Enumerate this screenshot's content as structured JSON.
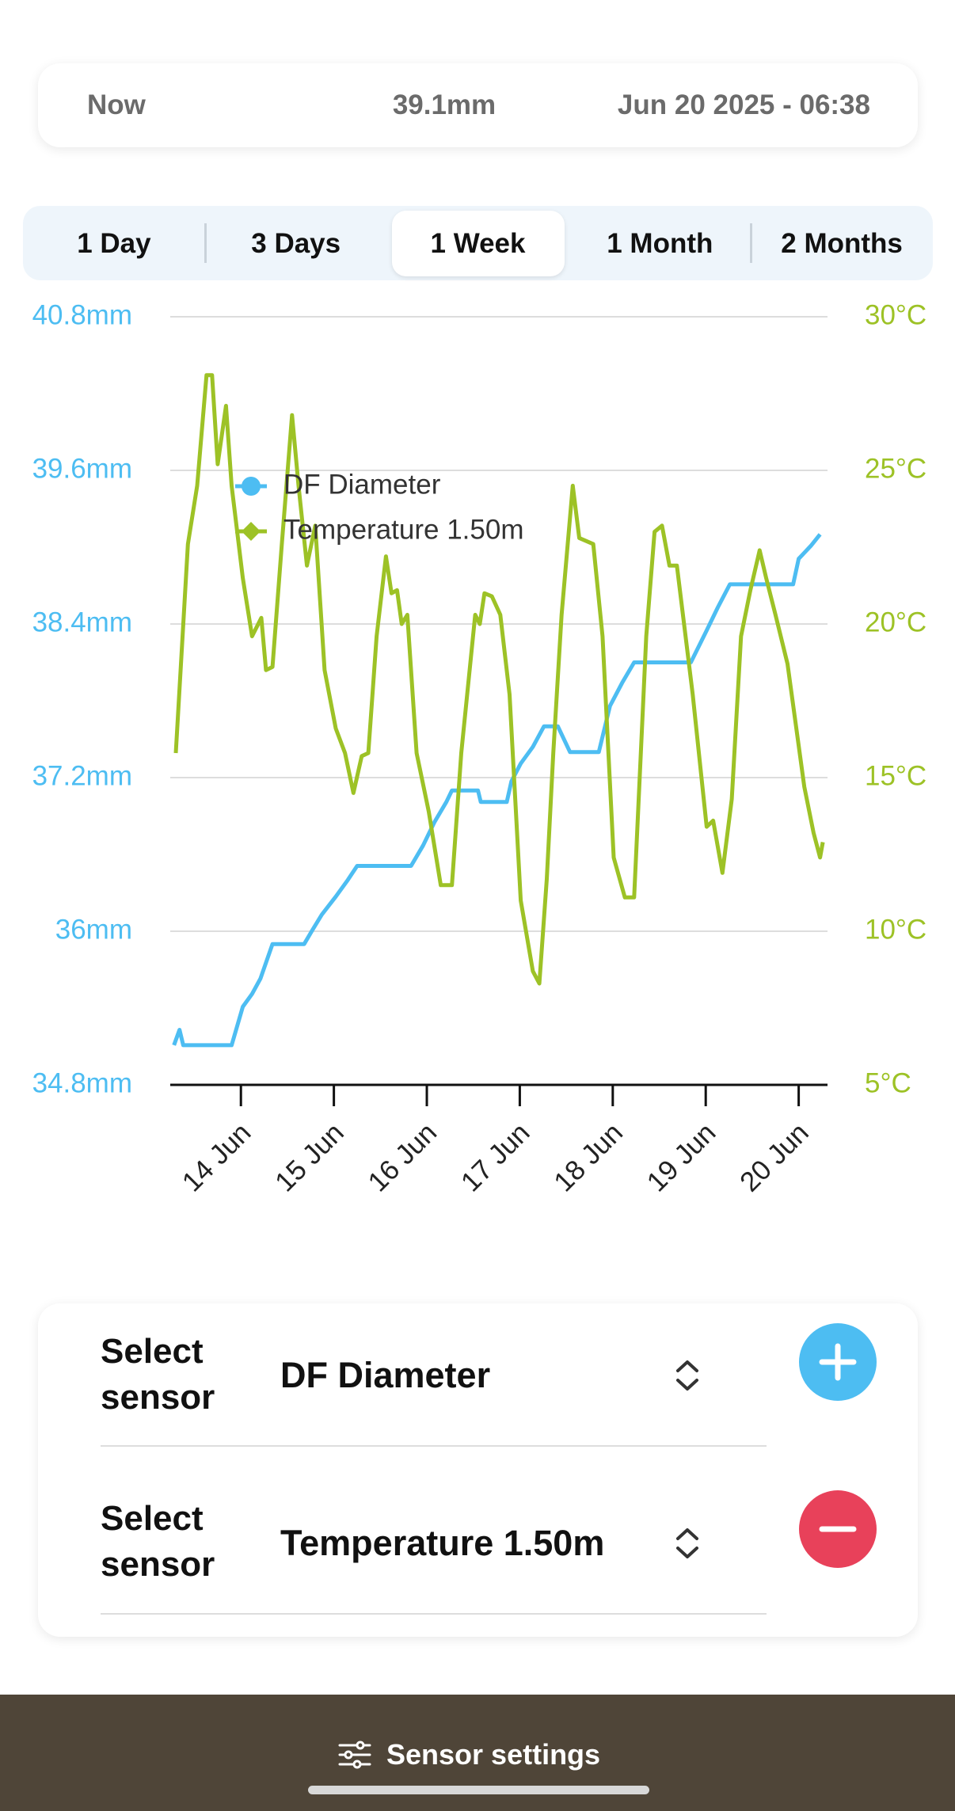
{
  "header": {
    "label": "Now",
    "value": "39.1mm",
    "timestamp": "Jun 20 2025 - 06:38"
  },
  "tabs": {
    "items": [
      "1 Day",
      "3 Days",
      "1 Week",
      "1 Month",
      "2 Months"
    ],
    "selected": "1 Week"
  },
  "chart_data": {
    "type": "line",
    "xlim": [
      13.24,
      20.31
    ],
    "xticks": [
      {
        "value": 14,
        "label": "14 Jun"
      },
      {
        "value": 15,
        "label": "15 Jun"
      },
      {
        "value": 16,
        "label": "16 Jun"
      },
      {
        "value": 17,
        "label": "17 Jun"
      },
      {
        "value": 18,
        "label": "18 Jun"
      },
      {
        "value": 19,
        "label": "19 Jun"
      },
      {
        "value": 20,
        "label": "20 Jun"
      }
    ],
    "ylim": [
      34.8,
      40.8
    ],
    "yticks": [
      {
        "value": 34.8,
        "label": "34.8mm"
      },
      {
        "value": 36,
        "label": "36mm"
      },
      {
        "value": 37.2,
        "label": "37.2mm"
      },
      {
        "value": 38.4,
        "label": "38.4mm"
      },
      {
        "value": 39.6,
        "label": "39.6mm"
      },
      {
        "value": 40.8,
        "label": "40.8mm"
      }
    ],
    "y2lim": [
      5,
      30
    ],
    "y2ticks": [
      {
        "value": 5,
        "label": "5°C"
      },
      {
        "value": 10,
        "label": "10°C"
      },
      {
        "value": 15,
        "label": "15°C"
      },
      {
        "value": 20,
        "label": "20°C"
      },
      {
        "value": 25,
        "label": "25°C"
      },
      {
        "value": 30,
        "label": "30°C"
      }
    ],
    "grid": true,
    "legend": "upper left",
    "series": [
      {
        "name": "DF Diameter",
        "color": "#4dbdf2",
        "marker": "circle",
        "axis": "y",
        "x": [
          13.28,
          13.34,
          13.38,
          13.9,
          14.02,
          14.12,
          14.21,
          14.34,
          14.68,
          14.77,
          14.87,
          15.02,
          15.15,
          15.25,
          15.83,
          15.96,
          16.08,
          16.21,
          16.27,
          16.55,
          16.58,
          16.86,
          16.91,
          17.01,
          17.14,
          17.26,
          17.41,
          17.54,
          17.85,
          17.97,
          18.1,
          18.23,
          18.84,
          19.01,
          19.13,
          19.26,
          19.94,
          20.0,
          20.13,
          20.23
        ],
        "values": [
          35.11,
          35.23,
          35.11,
          35.11,
          35.41,
          35.51,
          35.63,
          35.9,
          35.9,
          36.01,
          36.13,
          36.27,
          36.4,
          36.51,
          36.51,
          36.67,
          36.85,
          37.01,
          37.1,
          37.1,
          37.01,
          37.01,
          37.17,
          37.31,
          37.44,
          37.6,
          37.6,
          37.4,
          37.4,
          37.76,
          37.94,
          38.1,
          38.1,
          38.35,
          38.53,
          38.71,
          38.71,
          38.91,
          39.01,
          39.1
        ]
      },
      {
        "name": "Temperature 1.50m",
        "color": "#9dc226",
        "marker": "diamond",
        "axis": "y2",
        "x": [
          13.3,
          13.43,
          13.53,
          13.63,
          13.69,
          13.75,
          13.84,
          13.9,
          14.02,
          14.12,
          14.22,
          14.27,
          14.34,
          14.44,
          14.55,
          14.62,
          14.71,
          14.8,
          14.9,
          15.02,
          15.12,
          15.21,
          15.3,
          15.37,
          15.46,
          15.56,
          15.62,
          15.68,
          15.73,
          15.79,
          15.89,
          16.02,
          16.15,
          16.27,
          16.37,
          16.52,
          16.57,
          16.62,
          16.7,
          16.79,
          16.89,
          17.01,
          17.14,
          17.21,
          17.29,
          17.36,
          17.45,
          17.57,
          17.64,
          17.79,
          17.89,
          18.01,
          18.13,
          18.23,
          18.36,
          18.45,
          18.53,
          18.61,
          18.69,
          18.86,
          19.01,
          19.08,
          19.18,
          19.28,
          19.38,
          19.48,
          19.58,
          19.65,
          19.75,
          19.88,
          20.06,
          20.16,
          20.23,
          20.26
        ],
        "values": [
          15.8,
          22.6,
          24.5,
          28.1,
          28.1,
          25.2,
          27.1,
          24.5,
          21.5,
          19.6,
          20.2,
          18.5,
          18.6,
          22.6,
          26.8,
          24.5,
          21.9,
          23.2,
          18.5,
          16.6,
          15.8,
          14.5,
          15.7,
          15.8,
          19.6,
          22.2,
          21.0,
          21.1,
          20.0,
          20.3,
          15.8,
          13.9,
          11.5,
          11.5,
          15.8,
          20.3,
          20.0,
          21.0,
          20.9,
          20.3,
          17.7,
          11.0,
          8.7,
          8.3,
          11.7,
          15.8,
          20.3,
          24.5,
          22.8,
          22.6,
          19.6,
          12.4,
          11.1,
          11.1,
          19.6,
          23.0,
          23.2,
          21.9,
          21.9,
          17.7,
          13.4,
          13.6,
          11.9,
          14.3,
          19.6,
          21.1,
          22.4,
          21.5,
          20.3,
          18.7,
          14.7,
          13.2,
          12.4,
          12.9
        ]
      }
    ]
  },
  "sensors": [
    {
      "label": "Select sensor",
      "value": "DF Diameter"
    },
    {
      "label": "Select sensor",
      "value": "Temperature 1.50m"
    }
  ],
  "footer": {
    "button": "Sensor settings"
  }
}
